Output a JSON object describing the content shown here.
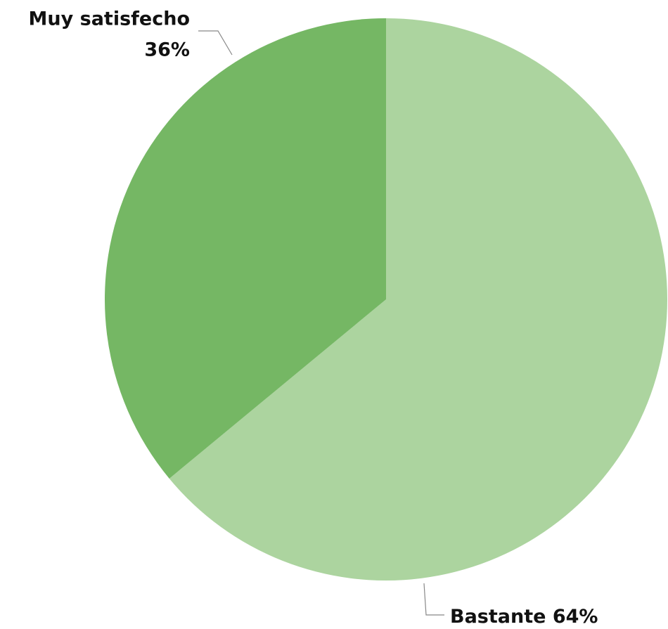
{
  "chart_data": {
    "type": "pie",
    "categories": [
      "Bastante",
      "Muy satisfecho"
    ],
    "values": [
      64,
      36
    ],
    "value_labels": [
      "64%",
      "36%"
    ],
    "colors": [
      "#acd49f",
      "#75b764"
    ]
  }
}
